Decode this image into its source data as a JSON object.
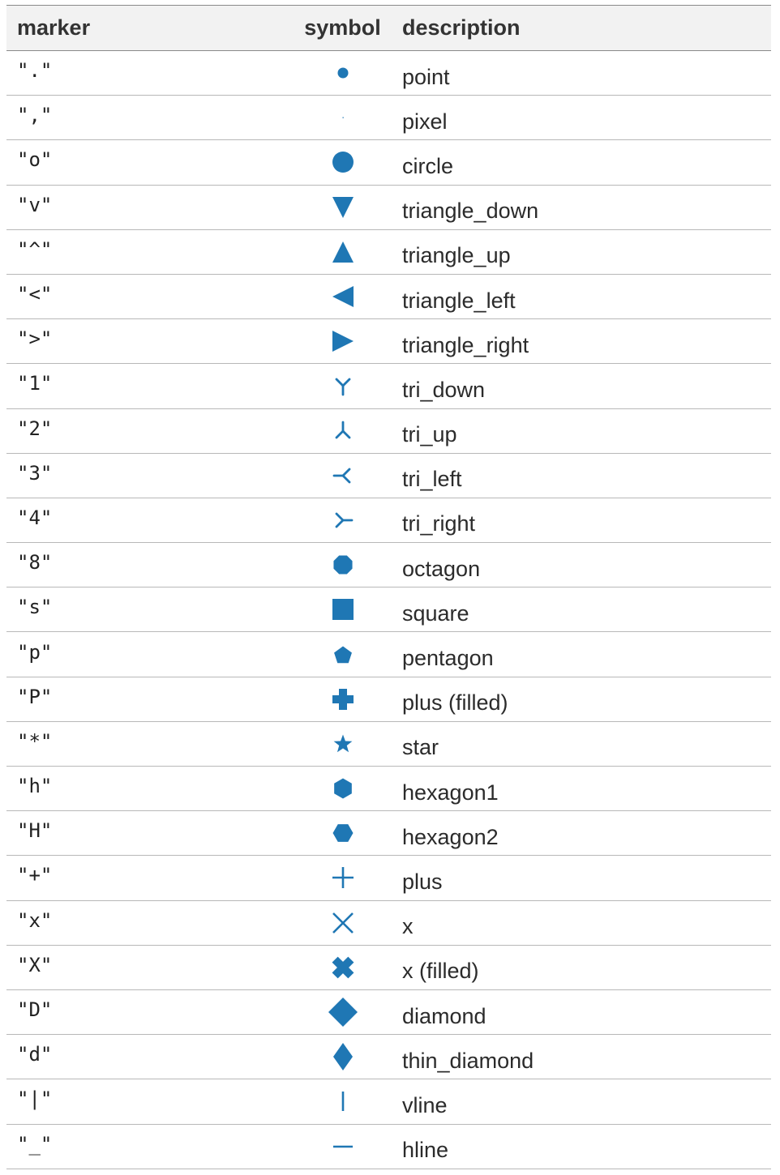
{
  "colors": {
    "marker_blue": "#1f77b4"
  },
  "header": {
    "marker": "marker",
    "symbol": "symbol",
    "description": "description"
  },
  "rows": [
    {
      "marker": "\".\"",
      "symbol_icon": "point-marker-icon",
      "description": "point"
    },
    {
      "marker": "\",\"",
      "symbol_icon": "pixel-marker-icon",
      "description": "pixel"
    },
    {
      "marker": "\"o\"",
      "symbol_icon": "circle-marker-icon",
      "description": "circle"
    },
    {
      "marker": "\"v\"",
      "symbol_icon": "triangle-down-marker-icon",
      "description": "triangle_down"
    },
    {
      "marker": "\"^\"",
      "symbol_icon": "triangle-up-marker-icon",
      "description": "triangle_up"
    },
    {
      "marker": "\"<\"",
      "symbol_icon": "triangle-left-marker-icon",
      "description": "triangle_left"
    },
    {
      "marker": "\">\"",
      "symbol_icon": "triangle-right-marker-icon",
      "description": "triangle_right"
    },
    {
      "marker": "\"1\"",
      "symbol_icon": "tri-down-marker-icon",
      "description": "tri_down"
    },
    {
      "marker": "\"2\"",
      "symbol_icon": "tri-up-marker-icon",
      "description": "tri_up"
    },
    {
      "marker": "\"3\"",
      "symbol_icon": "tri-left-marker-icon",
      "description": "tri_left"
    },
    {
      "marker": "\"4\"",
      "symbol_icon": "tri-right-marker-icon",
      "description": "tri_right"
    },
    {
      "marker": "\"8\"",
      "symbol_icon": "octagon-marker-icon",
      "description": "octagon"
    },
    {
      "marker": "\"s\"",
      "symbol_icon": "square-marker-icon",
      "description": "square"
    },
    {
      "marker": "\"p\"",
      "symbol_icon": "pentagon-marker-icon",
      "description": "pentagon"
    },
    {
      "marker": "\"P\"",
      "symbol_icon": "plus-filled-marker-icon",
      "description": "plus (filled)"
    },
    {
      "marker": "\"*\"",
      "symbol_icon": "star-marker-icon",
      "description": "star"
    },
    {
      "marker": "\"h\"",
      "symbol_icon": "hexagon1-marker-icon",
      "description": "hexagon1"
    },
    {
      "marker": "\"H\"",
      "symbol_icon": "hexagon2-marker-icon",
      "description": "hexagon2"
    },
    {
      "marker": "\"+\"",
      "symbol_icon": "plus-marker-icon",
      "description": "plus"
    },
    {
      "marker": "\"x\"",
      "symbol_icon": "x-marker-icon",
      "description": "x"
    },
    {
      "marker": "\"X\"",
      "symbol_icon": "x-filled-marker-icon",
      "description": "x (filled)"
    },
    {
      "marker": "\"D\"",
      "symbol_icon": "diamond-marker-icon",
      "description": "diamond"
    },
    {
      "marker": "\"d\"",
      "symbol_icon": "thin-diamond-marker-icon",
      "description": "thin_diamond"
    },
    {
      "marker": "\"|\"",
      "symbol_icon": "vline-marker-icon",
      "description": "vline"
    },
    {
      "marker": "\"_\"",
      "symbol_icon": "hline-marker-icon",
      "description": "hline"
    }
  ]
}
